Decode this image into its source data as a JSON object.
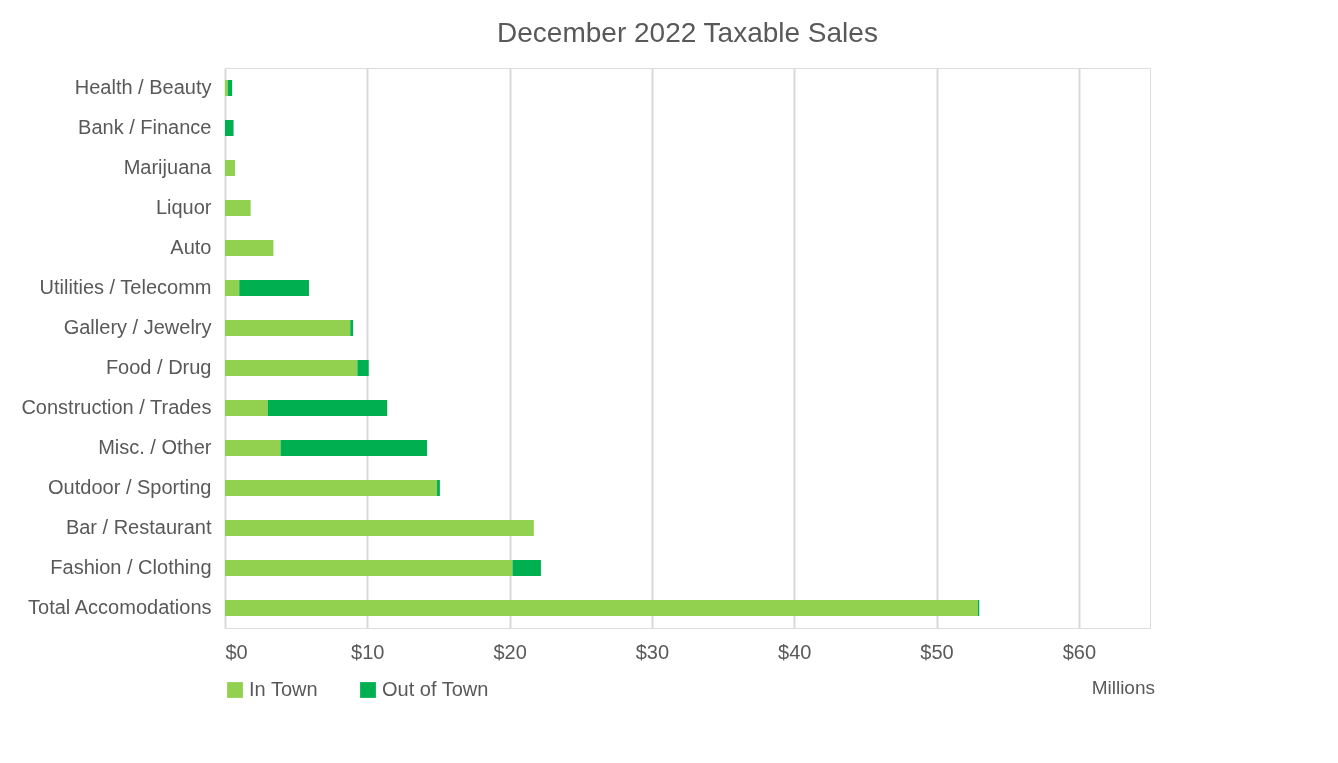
{
  "chart_data": {
    "type": "bar",
    "orientation": "horizontal",
    "stacked": true,
    "title": "December 2022 Taxable Sales",
    "categories": [
      "Health / Beauty",
      "Bank / Finance",
      "Marijuana",
      "Liquor",
      "Auto",
      "Utilities / Telecomm",
      "Gallery / Jewelry",
      "Food / Drug",
      "Construction / Trades",
      "Misc. / Other",
      "Outdoor / Sporting",
      "Bar / Restaurant",
      "Fashion / Clothing",
      "Total Accomodations"
    ],
    "series": [
      {
        "name": "In Town",
        "color": "#92d050",
        "values": [
          0.2,
          0,
          0.7,
          1.8,
          3.4,
          1.0,
          8.8,
          9.3,
          3.0,
          3.9,
          14.9,
          21.7,
          20.2,
          52.9
        ]
      },
      {
        "name": "Out of Town",
        "color": "#00b050",
        "values": [
          0.3,
          0.6,
          0,
          0,
          0,
          4.9,
          0.2,
          0.8,
          8.4,
          10.3,
          0.2,
          0,
          2.0,
          0.1
        ]
      }
    ],
    "xlim": [
      0,
      65
    ],
    "xticks": [
      {
        "value": 0,
        "label": "$0"
      },
      {
        "value": 10,
        "label": "$10"
      },
      {
        "value": 20,
        "label": "$20"
      },
      {
        "value": 30,
        "label": "$30"
      },
      {
        "value": 40,
        "label": "$40"
      },
      {
        "value": 50,
        "label": "$50"
      },
      {
        "value": 60,
        "label": "$60"
      }
    ],
    "grid": "x",
    "legend": "bottom",
    "annotations": [
      "Millions"
    ]
  }
}
